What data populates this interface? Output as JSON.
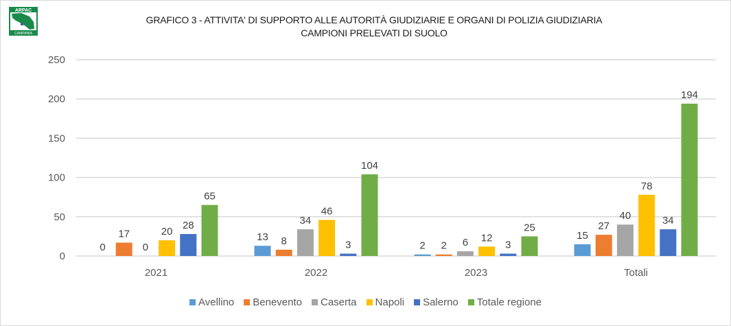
{
  "logo": {
    "text_top": "ARPAC",
    "text_bottom": "CAMPANIA"
  },
  "chart_data": {
    "type": "bar",
    "title_lines": [
      "GRAFICO 3 - ATTIVITA' DI SUPPORTO ALLE AUTORITÀ GIUDIZIARIE E ORGANI DI POLIZIA GIUDIZIARIA",
      "CAMPIONI PRELEVATI DI SUOLO"
    ],
    "xlabel": "",
    "ylabel": "",
    "ylim": [
      0,
      250
    ],
    "yticks": [
      "0",
      "50",
      "100",
      "150",
      "200",
      "250"
    ],
    "ytick_values": [
      0,
      50,
      100,
      150,
      200,
      250
    ],
    "grid": true,
    "legend_position": "bottom",
    "categories": [
      "2021",
      "2022",
      "2023",
      "Totali"
    ],
    "series": [
      {
        "name": "Avellino",
        "color": "#5b9bd5",
        "values": [
          0,
          13,
          2,
          15
        ]
      },
      {
        "name": "Benevento",
        "color": "#ed7d31",
        "values": [
          17,
          8,
          2,
          27
        ]
      },
      {
        "name": "Caserta",
        "color": "#a5a5a5",
        "values": [
          0,
          34,
          6,
          40
        ]
      },
      {
        "name": "Napoli",
        "color": "#ffc000",
        "values": [
          20,
          46,
          12,
          78
        ]
      },
      {
        "name": "Salerno",
        "color": "#4472c4",
        "values": [
          28,
          3,
          3,
          34
        ]
      },
      {
        "name": "Totale regione",
        "color": "#70ad47",
        "values": [
          65,
          104,
          25,
          194
        ]
      }
    ]
  }
}
